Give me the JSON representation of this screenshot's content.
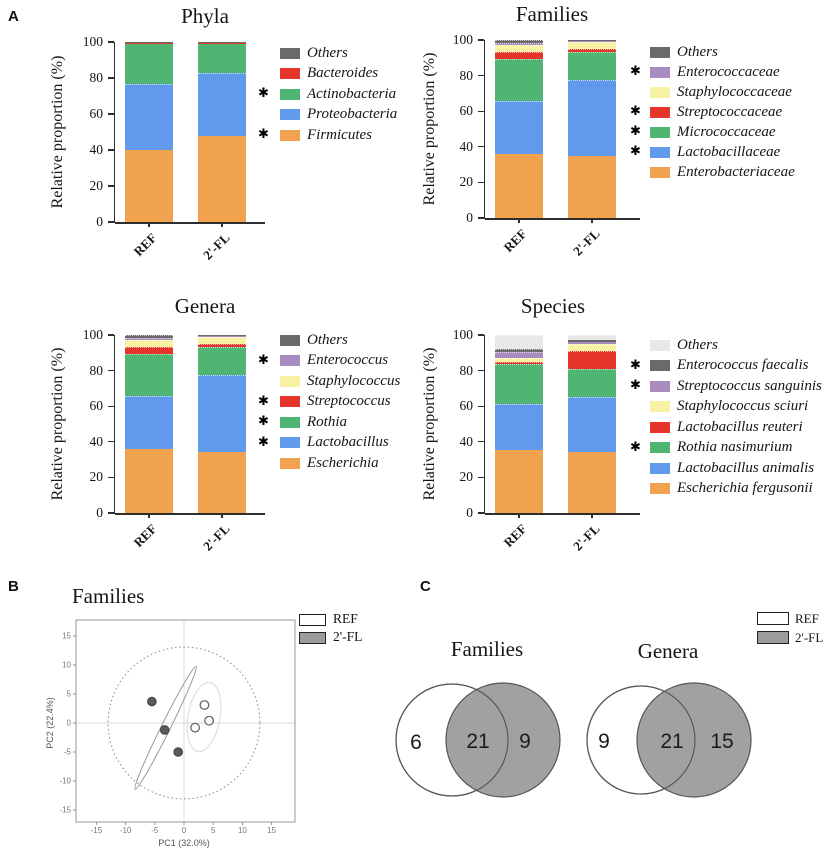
{
  "panel_labels": {
    "a": "A",
    "b": "B",
    "c": "C"
  },
  "colors": {
    "orange": "#F0A24E",
    "blue": "#6199EC",
    "green": "#50B573",
    "red": "#E5342A",
    "yellow": "#F8F2A4",
    "purple": "#A88CBF",
    "dark_gray": "#6A6A6A",
    "light_gray": "#E8E8E8",
    "venn_gray": "#9C9C9C",
    "axis": "#2e2e2e"
  },
  "chart_data": [
    {
      "type": "bar",
      "stacked": true,
      "title": "Phyla",
      "ylabel": "Relative proportion (%)",
      "ylim": [
        0,
        100
      ],
      "yticks": [
        0,
        20,
        40,
        60,
        80,
        100
      ],
      "categories": [
        "REF",
        "2'-FL"
      ],
      "series": [
        {
          "name": "Firmicutes",
          "color": "orange",
          "starred": true,
          "values": [
            40.0,
            48.0
          ]
        },
        {
          "name": "Proteobacteria",
          "color": "blue",
          "starred": false,
          "values": [
            36.5,
            35.0
          ]
        },
        {
          "name": "Actinobacteria",
          "color": "green",
          "starred": true,
          "values": [
            22.9,
            16.4
          ]
        },
        {
          "name": "Bacteroides",
          "color": "red",
          "starred": false,
          "values": [
            0.3,
            0.3
          ]
        },
        {
          "name": "Others",
          "color": "dark_gray",
          "starred": false,
          "values": [
            0.3,
            0.3
          ]
        }
      ]
    },
    {
      "type": "bar",
      "stacked": true,
      "title": "Families",
      "ylabel": "Relative proportion (%)",
      "ylim": [
        0,
        100
      ],
      "yticks": [
        0,
        20,
        40,
        60,
        80,
        100
      ],
      "categories": [
        "REF",
        "2'-FL"
      ],
      "series": [
        {
          "name": "Enterobacteriaceae",
          "color": "orange",
          "starred": false,
          "values": [
            36.0,
            35.0
          ]
        },
        {
          "name": "Lactobacillaceae",
          "color": "blue",
          "starred": true,
          "values": [
            30.0,
            42.5
          ]
        },
        {
          "name": "Micrococcaceae",
          "color": "green",
          "starred": true,
          "values": [
            23.5,
            16.0
          ]
        },
        {
          "name": "Streptococcaceae",
          "color": "red",
          "starred": true,
          "values": [
            3.5,
            1.5
          ]
        },
        {
          "name": "Staphylococcaceae",
          "color": "yellow",
          "starred": false,
          "values": [
            4.0,
            4.0
          ]
        },
        {
          "name": "Enterococcaceae",
          "color": "purple",
          "starred": true,
          "values": [
            1.5,
            0.2
          ]
        },
        {
          "name": "Others",
          "color": "dark_gray",
          "starred": false,
          "values": [
            1.5,
            0.8
          ]
        }
      ]
    },
    {
      "type": "bar",
      "stacked": true,
      "title": "Genera",
      "ylabel": "Relative proportion (%)",
      "ylim": [
        0,
        100
      ],
      "yticks": [
        0,
        20,
        40,
        60,
        80,
        100
      ],
      "categories": [
        "REF",
        "2'-FL"
      ],
      "series": [
        {
          "name": "Escherichia",
          "color": "orange",
          "starred": false,
          "values": [
            36.0,
            34.5
          ]
        },
        {
          "name": "Lactobacillus",
          "color": "blue",
          "starred": true,
          "values": [
            30.0,
            43.0
          ]
        },
        {
          "name": "Rothia",
          "color": "green",
          "starred": true,
          "values": [
            23.5,
            16.0
          ]
        },
        {
          "name": "Streptococcus",
          "color": "red",
          "starred": true,
          "values": [
            4.0,
            1.5
          ]
        },
        {
          "name": "Staphylococcus",
          "color": "yellow",
          "starred": false,
          "values": [
            3.5,
            4.0
          ]
        },
        {
          "name": "Enterococcus",
          "color": "purple",
          "starred": true,
          "values": [
            1.5,
            0.2
          ]
        },
        {
          "name": "Others",
          "color": "dark_gray",
          "starred": false,
          "values": [
            1.5,
            0.8
          ]
        }
      ]
    },
    {
      "type": "bar",
      "stacked": true,
      "title": "Species",
      "ylabel": "Relative proportion (%)",
      "ylim": [
        0,
        100
      ],
      "yticks": [
        0,
        20,
        40,
        60,
        80,
        100
      ],
      "categories": [
        "REF",
        "2'-FL"
      ],
      "series": [
        {
          "name": "Escherichia fergusonii",
          "color": "orange",
          "starred": false,
          "values": [
            35.5,
            34.0
          ]
        },
        {
          "name": "Lactobacillus animalis",
          "color": "blue",
          "starred": false,
          "values": [
            26.0,
            31.0
          ]
        },
        {
          "name": "Rothia nasimurium",
          "color": "green",
          "starred": true,
          "values": [
            22.0,
            16.0
          ]
        },
        {
          "name": "Lactobacillus reuteri",
          "color": "red",
          "starred": false,
          "values": [
            1.5,
            10.0
          ]
        },
        {
          "name": "Staphylococcus sciuri",
          "color": "yellow",
          "starred": false,
          "values": [
            2.0,
            4.0
          ]
        },
        {
          "name": "Streptococcus sanguinis",
          "color": "purple",
          "starred": true,
          "values": [
            3.5,
            1.2
          ]
        },
        {
          "name": "Enterococcus faecalis",
          "color": "dark_gray",
          "starred": true,
          "values": [
            1.5,
            0.8
          ]
        },
        {
          "name": "Others",
          "color": "light_gray",
          "starred": false,
          "values": [
            8.0,
            3.0
          ]
        }
      ]
    },
    {
      "type": "scatter",
      "title": "Families",
      "xlabel": "PC1 (32.0%)",
      "ylabel": "PC2 (22.4%)",
      "xticks": [
        -15,
        -10,
        -5,
        0,
        5,
        10,
        15
      ],
      "yticks": [
        15,
        10,
        5,
        0,
        -5,
        -10,
        -15
      ],
      "xlim": [
        -18.5,
        19
      ],
      "ylim": [
        -17.5,
        18
      ],
      "outer_circle_radius": 13,
      "legend": [
        {
          "label": "REF",
          "fill": "#FFFFFF"
        },
        {
          "label": "2'-FL",
          "fill": "#9C9C9C"
        }
      ],
      "series": [
        {
          "name": "REF",
          "marker": "open-circle",
          "points": [
            [
              3.5,
              3.1
            ],
            [
              4.3,
              0.4
            ],
            [
              1.9,
              -0.8
            ]
          ]
        },
        {
          "name": "2'-FL",
          "marker": "filled-circle",
          "points": [
            [
              -5.5,
              3.7
            ],
            [
              -3.3,
              -1.2
            ],
            [
              -1.0,
              -5.0
            ]
          ]
        }
      ]
    }
  ],
  "venn": {
    "legend": [
      {
        "label": "REF",
        "fill": "#FFFFFF"
      },
      {
        "label": "2'-FL",
        "fill": "#9C9C9C"
      }
    ],
    "diagrams": [
      {
        "title": "Families",
        "ref_only": 6,
        "shared": 21,
        "fl_only": 9
      },
      {
        "title": "Genera",
        "ref_only": 9,
        "shared": 21,
        "fl_only": 15
      }
    ]
  }
}
